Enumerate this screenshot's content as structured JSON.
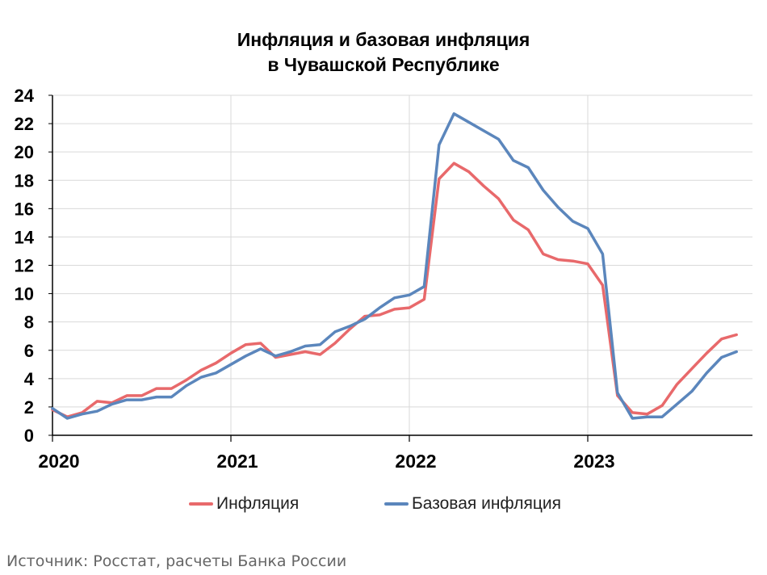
{
  "chart_data": {
    "type": "line",
    "title_line1": "Инфляция и базовая инфляция",
    "title_line2": "в Чувашской Республике",
    "xlabel": "",
    "ylabel": "",
    "ylim": [
      0,
      24
    ],
    "yticks": [
      "0",
      "2",
      "4",
      "6",
      "8",
      "10",
      "12",
      "14",
      "16",
      "18",
      "20",
      "22",
      "24"
    ],
    "xticks": [
      "2020",
      "2021",
      "2022",
      "2023"
    ],
    "grid": true,
    "legend_position": "bottom",
    "x_start": "2020-01",
    "x_end": "2023-11",
    "series": [
      {
        "name": "Инфляция",
        "color": "#E8696B",
        "values": [
          1.8,
          1.3,
          1.6,
          2.4,
          2.3,
          2.8,
          2.8,
          3.3,
          3.3,
          3.9,
          4.6,
          5.1,
          5.8,
          6.4,
          6.5,
          5.5,
          5.7,
          5.9,
          5.7,
          6.5,
          7.5,
          8.4,
          8.5,
          8.9,
          9.0,
          9.6,
          18.1,
          19.2,
          18.6,
          17.6,
          16.7,
          15.2,
          14.5,
          12.8,
          12.4,
          12.3,
          12.1,
          10.6,
          2.8,
          1.6,
          1.5,
          2.1,
          3.6,
          4.7,
          5.8,
          6.8,
          7.1
        ]
      },
      {
        "name": "Базовая инфляция",
        "color": "#5B86BC",
        "values": [
          1.9,
          1.2,
          1.5,
          1.7,
          2.2,
          2.5,
          2.5,
          2.7,
          2.7,
          3.5,
          4.1,
          4.4,
          5.0,
          5.6,
          6.1,
          5.6,
          5.9,
          6.3,
          6.4,
          7.3,
          7.7,
          8.2,
          9.0,
          9.7,
          9.9,
          10.5,
          20.5,
          22.7,
          22.1,
          21.5,
          20.9,
          19.4,
          18.9,
          17.3,
          16.1,
          15.1,
          14.6,
          12.8,
          3.0,
          1.2,
          1.3,
          1.3,
          2.2,
          3.1,
          4.4,
          5.5,
          5.9
        ]
      }
    ]
  },
  "source": "Источник: Росстат, расчеты Банка России"
}
